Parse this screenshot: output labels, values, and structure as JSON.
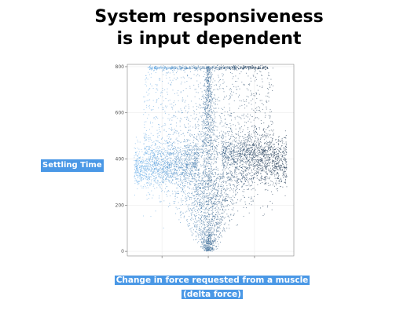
{
  "title_line1": "System responsiveness",
  "title_line2": "is input dependent",
  "ylabel": "Settling Time",
  "xlabel_line1": "Change in force requested from a muscle",
  "xlabel_line2": "(delta force)",
  "colors": {
    "label_bg": "#4a98e6",
    "point_light": "#6aaee8",
    "point_dark": "#1c3550",
    "grid": "#ececec",
    "frame": "#888888"
  },
  "chart_data": {
    "type": "scatter",
    "title": "System responsiveness is input dependent",
    "xlabel": "Change in force requested from a muscle (delta force)",
    "ylabel": "Settling Time",
    "xlim": [
      -17.5,
      18.5
    ],
    "ylim": [
      -20,
      810
    ],
    "x_ticks": [
      -10,
      0,
      10
    ],
    "y_ticks": [
      0,
      200,
      400,
      600,
      800
    ],
    "grid": true,
    "legend": "none",
    "color_encoding": "points colored by delta force, lighter blue for negative values and dark navy for positive values",
    "description_of_distribution": [
      {
        "region": "left plateau",
        "x_range": [
          -16,
          -3
        ],
        "y_center": 365,
        "y_spread": 50
      },
      {
        "region": "right plateau",
        "x_range": [
          3,
          16
        ],
        "y_center": 400,
        "y_spread": 60
      },
      {
        "region": "central spike",
        "x_range": [
          -1,
          1
        ],
        "y_range": [
          0,
          800
        ]
      },
      {
        "region": "ceiling band",
        "x_range": [
          -14,
          14
        ],
        "y_value": 800
      },
      {
        "region": "funnel bottom",
        "x_center": 0,
        "y_range": [
          0,
          250
        ]
      }
    ]
  }
}
